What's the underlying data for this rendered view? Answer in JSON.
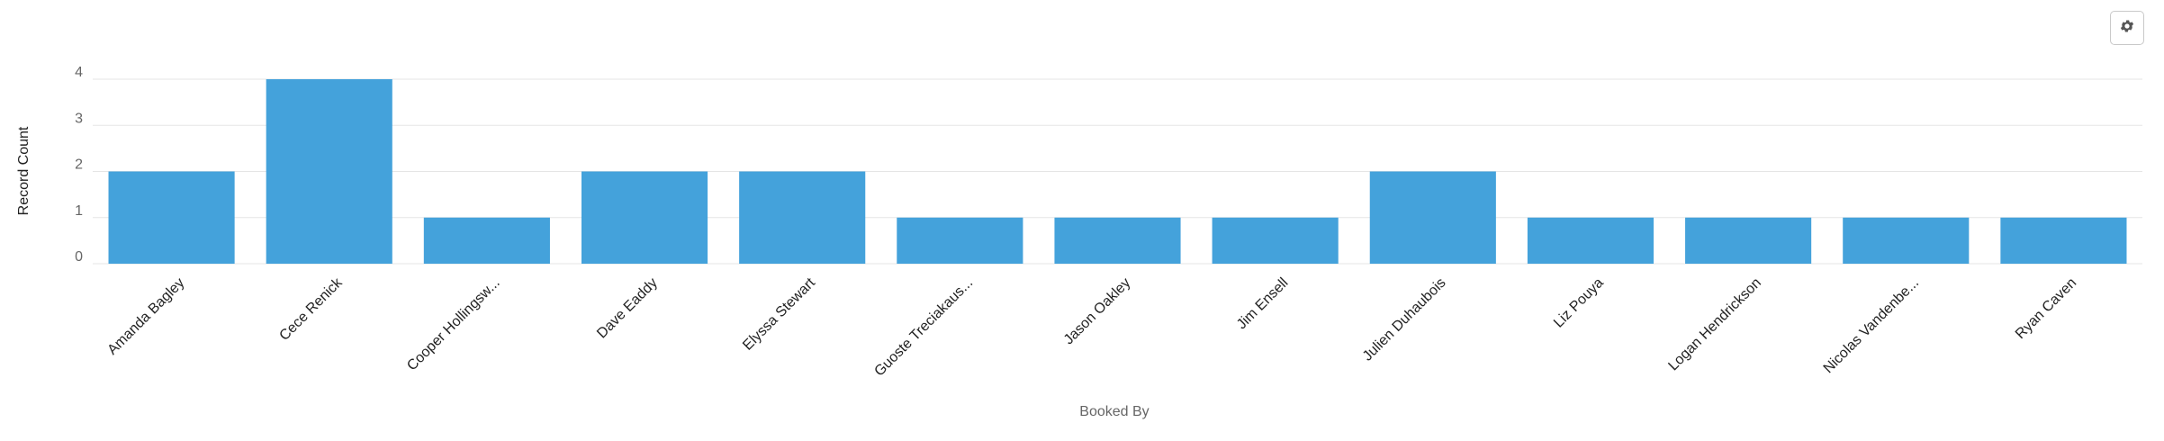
{
  "settings_button": {
    "icon": "gear-icon"
  },
  "chart_data": {
    "type": "bar",
    "title": "",
    "xlabel": "Booked By",
    "ylabel": "Record Count",
    "categories": [
      "Amanda Bagley",
      "Cece Renick",
      "Cooper Hollingsw...",
      "Dave Eaddy",
      "Elyssa Stewart",
      "Guoste Treciakaus...",
      "Jason Oakley",
      "Jim Ensell",
      "Julien Duhaubois",
      "Liz Pouya",
      "Logan Hendrickson",
      "Nicolas Vandenbe...",
      "Ryan Caven"
    ],
    "values": [
      2,
      4,
      1,
      2,
      2,
      1,
      1,
      1,
      2,
      1,
      1,
      1,
      1
    ],
    "yticks": [
      0,
      1,
      2,
      3,
      4
    ],
    "ylim": [
      0,
      4
    ],
    "grid": true,
    "legend": "none",
    "bar_color": "#44a2db",
    "grid_color": "#e5e5e5",
    "tick_color": "#666666",
    "label_color": "#222222"
  }
}
